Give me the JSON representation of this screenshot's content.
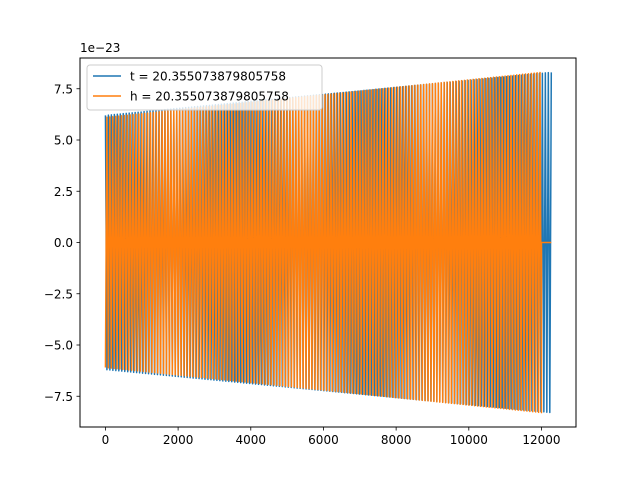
{
  "chart_data": {
    "type": "line",
    "title": "",
    "xlabel": "",
    "ylabel": "",
    "y_offset_label": "1e−23",
    "xlim": [
      -700,
      12950
    ],
    "ylim": [
      -9.0,
      9.0
    ],
    "x_ticks": [
      {
        "value": 0,
        "label": "0"
      },
      {
        "value": 2000,
        "label": "2000"
      },
      {
        "value": 4000,
        "label": "4000"
      },
      {
        "value": 6000,
        "label": "6000"
      },
      {
        "value": 8000,
        "label": "8000"
      },
      {
        "value": 10000,
        "label": "10000"
      },
      {
        "value": 12000,
        "label": "12000"
      }
    ],
    "y_ticks": [
      {
        "value": 7.5,
        "label": "7.5"
      },
      {
        "value": 5.0,
        "label": "5.0"
      },
      {
        "value": 2.5,
        "label": "2.5"
      },
      {
        "value": 0.0,
        "label": "0.0"
      },
      {
        "value": -2.5,
        "label": "−2.5"
      },
      {
        "value": -5.0,
        "label": "−5.0"
      },
      {
        "value": -7.5,
        "label": "−7.5"
      }
    ],
    "grid": false,
    "legend": {
      "placement": "top-left"
    },
    "series": [
      {
        "name": "t = 20.355073879805758",
        "color": "#1f77b4",
        "x_start": 0,
        "x_end": 12270,
        "amplitude_start": 6.2,
        "amplitude_end": 8.3,
        "cycles": 150
      },
      {
        "name": "h = 20.355073879805758",
        "color": "#ff7f0e",
        "x_start": 0,
        "x_end": 12000,
        "amplitude_start": 6.1,
        "amplitude_end": 8.3,
        "cycles": 150,
        "tail_x_end": 12270,
        "tail_value": 0.0
      }
    ]
  }
}
